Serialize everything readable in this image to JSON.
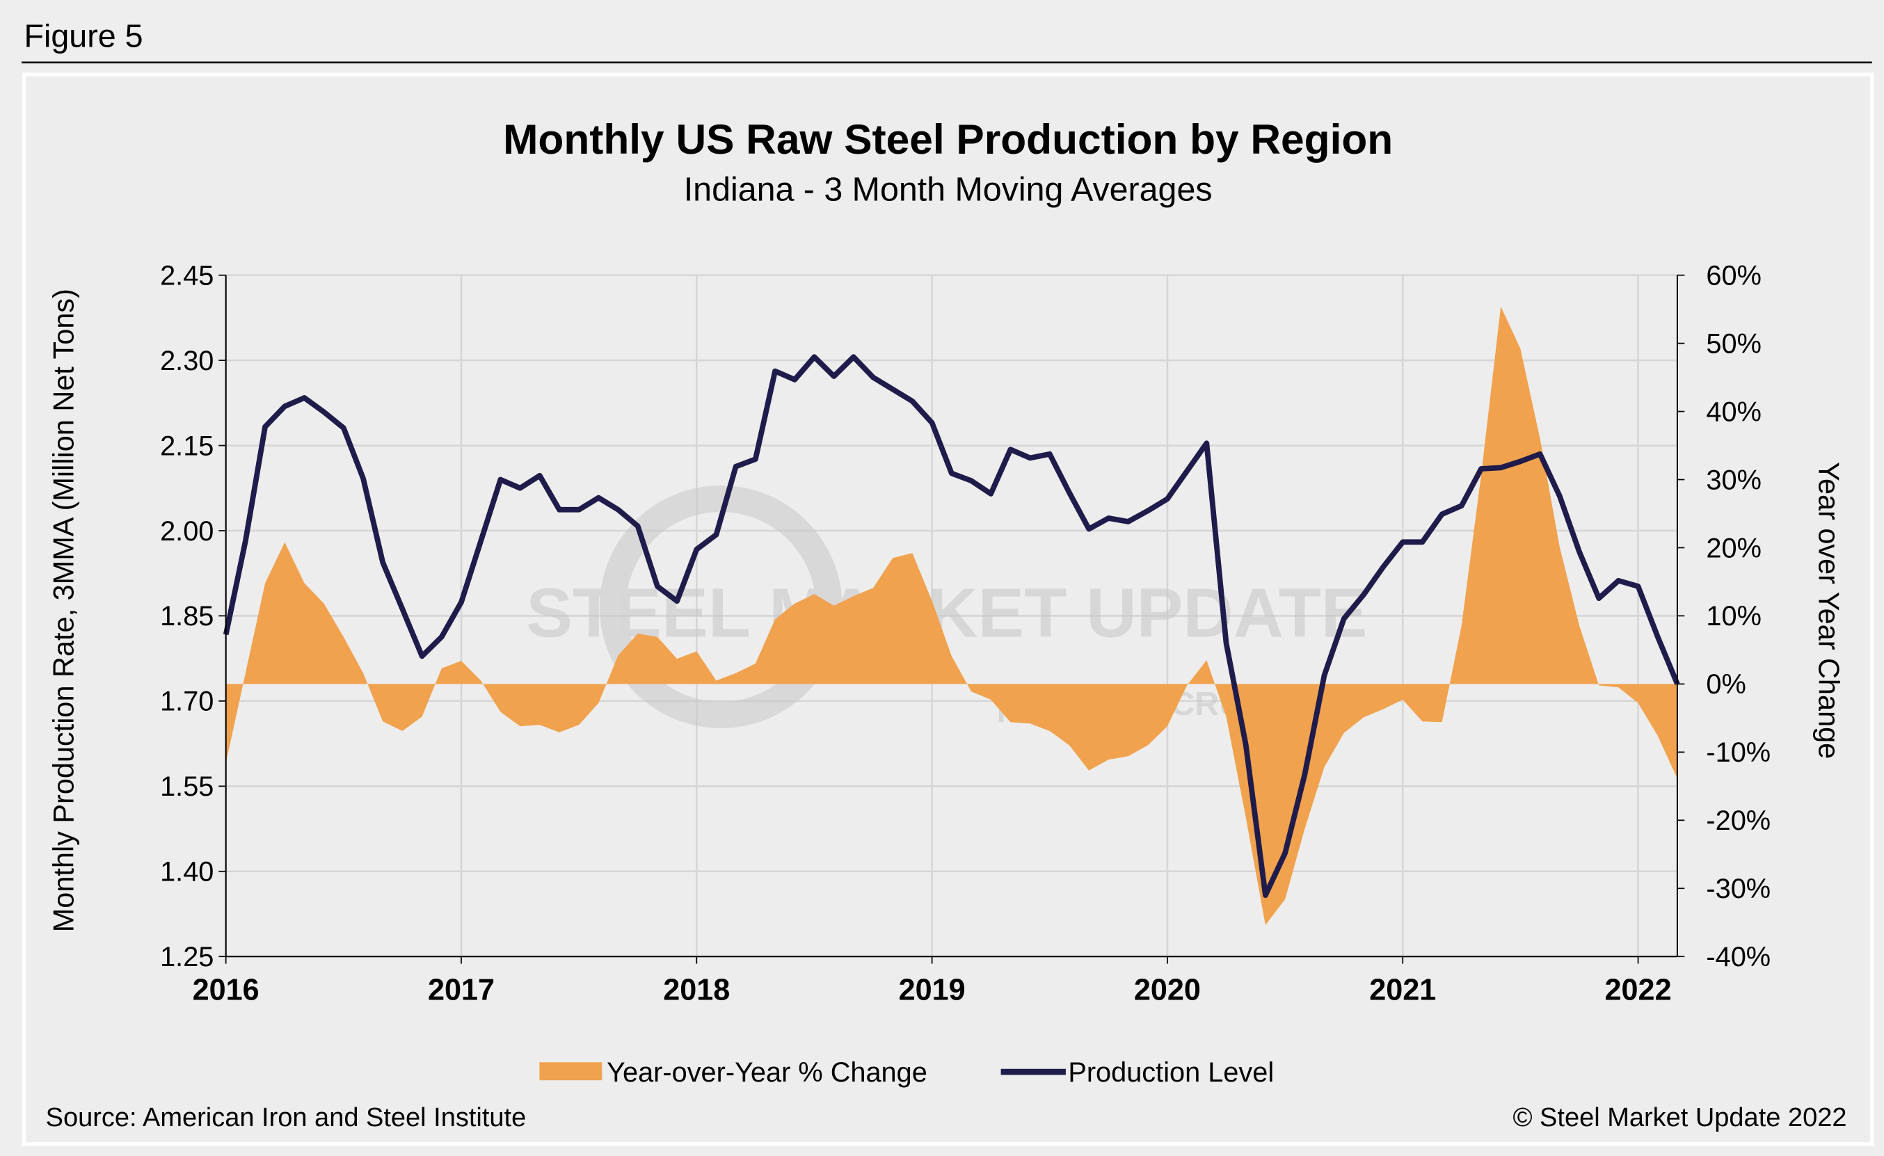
{
  "figure_label": "Figure 5",
  "source": "Source: American Iron and Steel Institute",
  "copyright": "© Steel Market Update 2022",
  "watermark": {
    "main": "STEEL MARKET UPDATE",
    "sub": "part of the CRU Group"
  },
  "colors": {
    "area": "#F0A24E",
    "line": "#1F1B4B",
    "background": "#EEEEEE",
    "grid": "#D6D6D6"
  },
  "chart_data": {
    "type": "line+area",
    "title": "Monthly US Raw Steel Production by Region",
    "subtitle": "Indiana - 3 Month Moving Averages",
    "ylabel": "Monthly Production Rate, 3MMA (Million Net Tons)",
    "y2label": "Year over Year Change",
    "ylim": [
      1.25,
      2.45
    ],
    "y2lim": [
      -40,
      60
    ],
    "yticks": [
      "2.45",
      "2.30",
      "2.15",
      "2.00",
      "1.85",
      "1.70",
      "1.55",
      "1.40",
      "1.25"
    ],
    "y2ticks": [
      "60%",
      "50%",
      "40%",
      "30%",
      "20%",
      "10%",
      "0%",
      "-10%",
      "-20%",
      "-30%",
      "-40%"
    ],
    "xticks": [
      "2016",
      "2017",
      "2018",
      "2019",
      "2020",
      "2021",
      "2022"
    ],
    "x_start": "2016-01",
    "x_end": "2022-03",
    "grid": true,
    "legend_position": "bottom",
    "series": [
      {
        "name": "Year-over-Year % Change",
        "type": "area",
        "axis": "right",
        "values": [
          -11.6,
          1.6,
          14.8,
          20.8,
          14.8,
          11.8,
          6.9,
          1.6,
          -5.5,
          -6.9,
          -4.8,
          2.3,
          3.4,
          0.5,
          -4.1,
          -6.2,
          -6.0,
          -7.1,
          -6.0,
          -2.8,
          4.2,
          7.4,
          6.9,
          3.7,
          4.8,
          0.5,
          1.6,
          3.0,
          9.5,
          11.8,
          13.2,
          11.5,
          12.9,
          14.1,
          18.5,
          19.2,
          12.2,
          4.1,
          -1.1,
          -2.3,
          -5.6,
          -5.8,
          -6.9,
          -9.0,
          -12.7,
          -11.1,
          -10.6,
          -9.0,
          -6.2,
          -0.2,
          3.5,
          -4.8,
          -19.6,
          -35.4,
          -31.6,
          -21.3,
          -12.2,
          -7.2,
          -4.9,
          -3.7,
          -2.3,
          -5.5,
          -5.6,
          8.6,
          30.7,
          55.4,
          49.2,
          36.0,
          20.1,
          8.6,
          -0.2,
          -0.5,
          -2.8,
          -7.6,
          -13.9
        ]
      },
      {
        "name": "Production Level",
        "type": "line",
        "axis": "left",
        "values": [
          1.817,
          1.982,
          2.183,
          2.219,
          2.234,
          2.209,
          2.181,
          2.092,
          1.944,
          1.862,
          1.779,
          1.813,
          1.874,
          1.982,
          2.09,
          2.075,
          2.097,
          2.037,
          2.037,
          2.058,
          2.037,
          2.008,
          1.902,
          1.876,
          1.967,
          1.993,
          2.113,
          2.126,
          2.281,
          2.266,
          2.306,
          2.272,
          2.306,
          2.27,
          2.249,
          2.228,
          2.19,
          2.101,
          2.088,
          2.065,
          2.143,
          2.128,
          2.135,
          2.067,
          2.003,
          2.022,
          2.016,
          2.035,
          2.056,
          2.105,
          2.154,
          1.802,
          1.623,
          1.358,
          1.432,
          1.57,
          1.745,
          1.845,
          1.887,
          1.936,
          1.98,
          1.98,
          2.029,
          2.044,
          2.109,
          2.111,
          2.122,
          2.135,
          2.061,
          1.963,
          1.881,
          1.912,
          1.902,
          1.813,
          1.73
        ]
      }
    ]
  }
}
